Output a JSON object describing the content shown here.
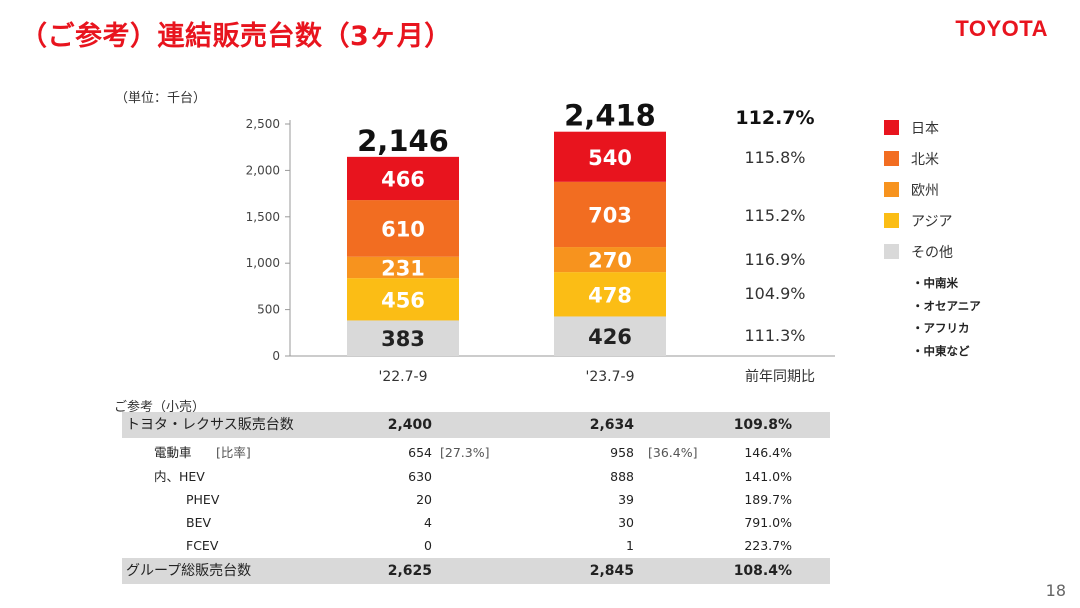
{
  "header": {
    "title": "（ご参考）連結販売台数（3ヶ月）",
    "logo_text": "TOYOTA"
  },
  "unit_label": "（単位：千台）",
  "chart_data": {
    "type": "bar",
    "stacked": true,
    "categories": [
      "'22.7-9",
      "'23.7-9"
    ],
    "ylim": [
      0,
      2500
    ],
    "yticks": [
      "0",
      "500",
      "1,000",
      "1,500",
      "2,000",
      "2,500"
    ],
    "ytick_values": [
      0,
      500,
      1000,
      1500,
      2000,
      2500
    ],
    "totals": [
      "2,146",
      "2,418"
    ],
    "series": [
      {
        "name": "その他",
        "color": "#d9d9d9",
        "values": [
          383,
          426
        ],
        "labels": [
          "383",
          "426"
        ],
        "yoy": "111.3%"
      },
      {
        "name": "アジア",
        "color": "#fbbd15",
        "values": [
          456,
          478
        ],
        "labels": [
          "456",
          "478"
        ],
        "yoy": "104.9%"
      },
      {
        "name": "欧州",
        "color": "#f7931e",
        "values": [
          231,
          270
        ],
        "labels": [
          "231",
          "270"
        ],
        "yoy": "116.9%"
      },
      {
        "name": "北米",
        "color": "#f26d21",
        "values": [
          610,
          703
        ],
        "labels": [
          "610",
          "703"
        ],
        "yoy": "115.2%"
      },
      {
        "name": "日本",
        "color": "#e8141e",
        "values": [
          466,
          540
        ],
        "labels": [
          "466",
          "540"
        ],
        "yoy": "115.8%"
      }
    ],
    "total_yoy": "112.7%",
    "yoy_header": "前年同期比",
    "legend_placement": "right"
  },
  "legend": {
    "items": [
      {
        "label": "日本",
        "color": "#e8141e"
      },
      {
        "label": "北米",
        "color": "#f26d21"
      },
      {
        "label": "欧州",
        "color": "#f7931e"
      },
      {
        "label": "アジア",
        "color": "#fbbd15"
      },
      {
        "label": "その他",
        "color": "#d9d9d9"
      }
    ],
    "other_notes": [
      "・中南米",
      "・オセアニア",
      "・アフリカ",
      "・中東など"
    ]
  },
  "table": {
    "caption": "ご参考（小売）",
    "rows": [
      {
        "label": "トヨタ・レクサス販売台数",
        "sublabel": "",
        "v1": "2,400",
        "s1": "",
        "v2": "2,634",
        "s2": "",
        "yoy": "109.8%"
      },
      {
        "label": "電動車",
        "sublabel": "[比率]",
        "v1": "654",
        "s1": "[27.3%]",
        "v2": "958",
        "s2": "[36.4%]",
        "yoy": "146.4%"
      },
      {
        "label": "内、HEV",
        "sublabel": "",
        "v1": "630",
        "s1": "",
        "v2": "888",
        "s2": "",
        "yoy": "141.0%"
      },
      {
        "label": "PHEV",
        "sublabel": "",
        "v1": "20",
        "s1": "",
        "v2": "39",
        "s2": "",
        "yoy": "189.7%"
      },
      {
        "label": "BEV",
        "sublabel": "",
        "v1": "4",
        "s1": "",
        "v2": "30",
        "s2": "",
        "yoy": "791.0%"
      },
      {
        "label": "FCEV",
        "sublabel": "",
        "v1": "0",
        "s1": "",
        "v2": "1",
        "s2": "",
        "yoy": "223.7%"
      },
      {
        "label": "グループ総販売台数",
        "sublabel": "",
        "v1": "2,625",
        "s1": "",
        "v2": "2,845",
        "s2": "",
        "yoy": "108.4%"
      }
    ]
  },
  "page_number": "18"
}
